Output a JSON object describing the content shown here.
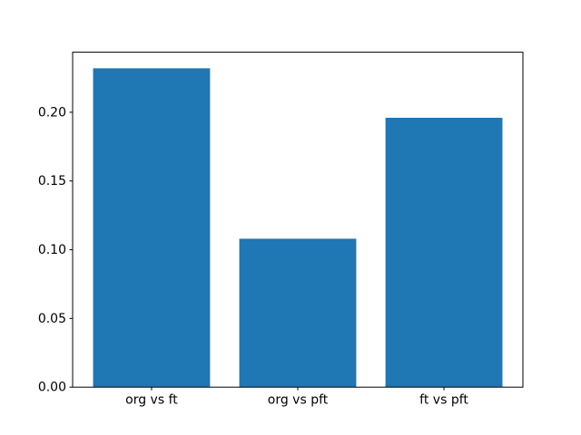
{
  "chart_data": {
    "type": "bar",
    "title": "",
    "xlabel": "",
    "ylabel": "",
    "categories": [
      "org vs ft",
      "org vs pft",
      "ft vs pft"
    ],
    "values": [
      0.232,
      0.108,
      0.196
    ],
    "ytick_labels": [
      "0.00",
      "0.05",
      "0.10",
      "0.15",
      "0.20"
    ],
    "ytick_values": [
      0,
      0.05,
      0.1,
      0.15,
      0.2
    ],
    "ylim": [
      0,
      0.2437
    ],
    "xlim": [
      -0.54,
      2.54
    ],
    "bar_width": 0.8,
    "grid": false,
    "legend": false,
    "colors": {
      "bar": "#1f77b4",
      "axis": "#000000",
      "text": "#000000",
      "background": "#ffffff"
    }
  }
}
